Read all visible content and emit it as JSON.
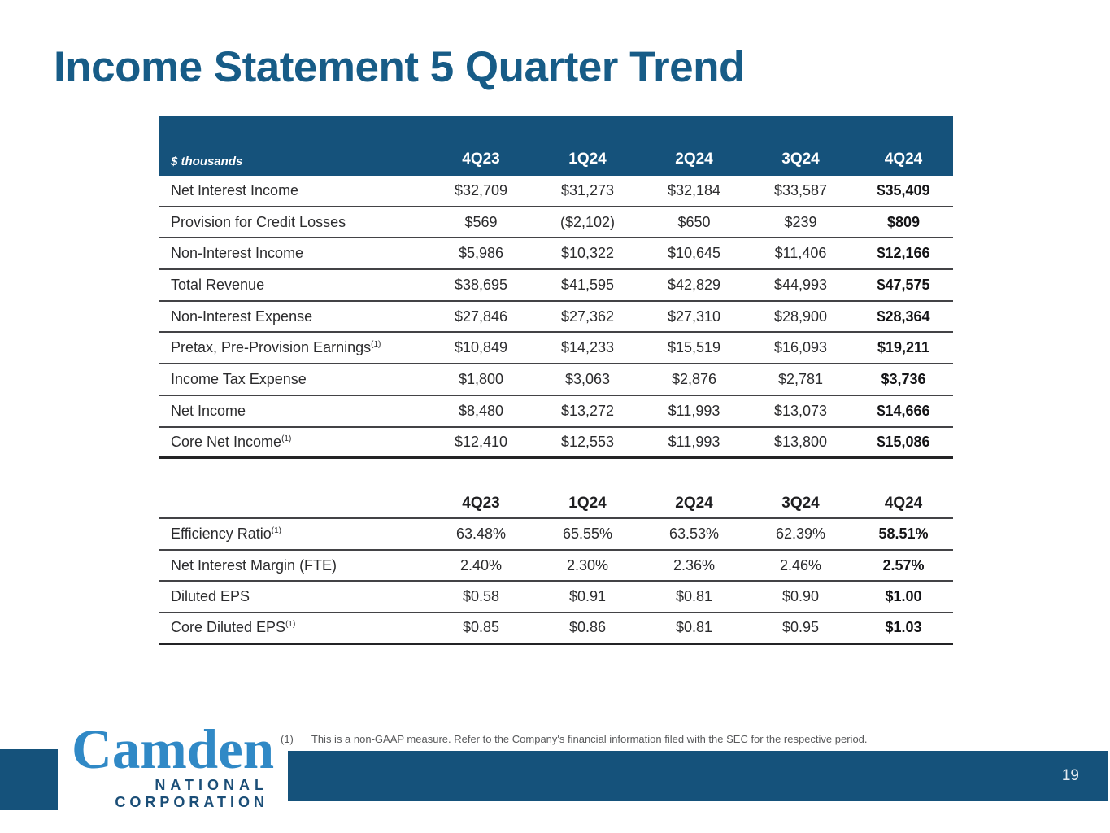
{
  "slide": {
    "title": "Income Statement 5 Quarter Trend",
    "page_number": "19",
    "accent_color": "#15527B",
    "title_color": "#175C87",
    "logo_blue": "#3089C6",
    "logo_navy": "#1B4E77"
  },
  "table1": {
    "unit_label": "$ thousands",
    "columns": [
      "4Q23",
      "1Q24",
      "2Q24",
      "3Q24",
      "4Q24"
    ],
    "rows": [
      {
        "label": "Net Interest Income",
        "sup": "",
        "values": [
          "$32,709",
          "$31,273",
          "$32,184",
          "$33,587",
          "$35,409"
        ]
      },
      {
        "label": "Provision for Credit Losses",
        "sup": "",
        "values": [
          "$569",
          "($2,102)",
          "$650",
          "$239",
          "$809"
        ]
      },
      {
        "label": "Non-Interest Income",
        "sup": "",
        "values": [
          "$5,986",
          "$10,322",
          "$10,645",
          "$11,406",
          "$12,166"
        ]
      },
      {
        "label": "Total Revenue",
        "sup": "",
        "values": [
          "$38,695",
          "$41,595",
          "$42,829",
          "$44,993",
          "$47,575"
        ]
      },
      {
        "label": "Non-Interest Expense",
        "sup": "",
        "values": [
          "$27,846",
          "$27,362",
          "$27,310",
          "$28,900",
          "$28,364"
        ]
      },
      {
        "label": "Pretax, Pre-Provision Earnings",
        "sup": "(1)",
        "values": [
          "$10,849",
          "$14,233",
          "$15,519",
          "$16,093",
          "$19,211"
        ]
      },
      {
        "label": "Income Tax Expense",
        "sup": "",
        "values": [
          "$1,800",
          "$3,063",
          "$2,876",
          "$2,781",
          "$3,736"
        ]
      },
      {
        "label": "Net Income",
        "sup": "",
        "values": [
          "$8,480",
          "$13,272",
          "$11,993",
          "$13,073",
          "$14,666"
        ]
      },
      {
        "label": "Core Net Income",
        "sup": "(1)",
        "values": [
          "$12,410",
          "$12,553",
          "$11,993",
          "$13,800",
          "$15,086"
        ]
      }
    ]
  },
  "table2": {
    "columns": [
      "4Q23",
      "1Q24",
      "2Q24",
      "3Q24",
      "4Q24"
    ],
    "rows": [
      {
        "label": "Efficiency Ratio",
        "sup": "(1)",
        "values": [
          "63.48%",
          "65.55%",
          "63.53%",
          "62.39%",
          "58.51%"
        ]
      },
      {
        "label": "Net Interest Margin (FTE)",
        "sup": "",
        "values": [
          "2.40%",
          "2.30%",
          "2.36%",
          "2.46%",
          "2.57%"
        ]
      },
      {
        "label": "Diluted EPS",
        "sup": "",
        "values": [
          "$0.58",
          "$0.91",
          "$0.81",
          "$0.90",
          "$1.00"
        ]
      },
      {
        "label": "Core Diluted EPS",
        "sup": "(1)",
        "values": [
          "$0.85",
          "$0.86",
          "$0.81",
          "$0.95",
          "$1.03"
        ]
      }
    ]
  },
  "footnote": {
    "marker": "(1)",
    "text": "This is a non-GAAP measure. Refer to the Company's financial information filed with the SEC for the respective period."
  },
  "logo": {
    "name": "Camden",
    "line2": "NATIONAL",
    "line3": "CORPORATION"
  }
}
